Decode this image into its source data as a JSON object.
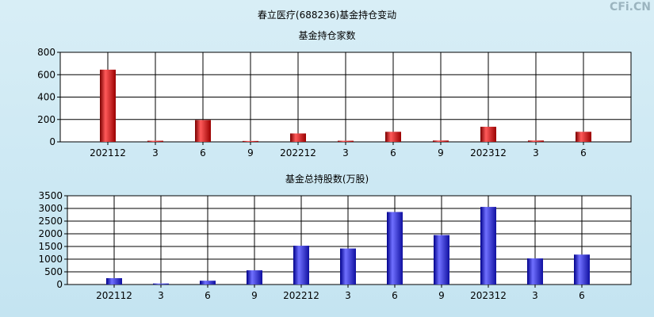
{
  "title": "春立医疗(688236)基金持仓变动",
  "watermark": "CFi.CN",
  "chart_data": [
    {
      "type": "bar",
      "title": "基金持仓家数",
      "categories": [
        "202112",
        "3",
        "6",
        "9",
        "202212",
        "3",
        "6",
        "9",
        "202312",
        "3",
        "6"
      ],
      "values": [
        645,
        10,
        195,
        8,
        75,
        10,
        90,
        12,
        135,
        12,
        90
      ],
      "ylim": [
        0,
        800
      ],
      "yticks": [
        0,
        200,
        400,
        600,
        800
      ],
      "grid": true,
      "color": "#e02020"
    },
    {
      "type": "bar",
      "title": "基金总持股数(万股)",
      "categories": [
        "202112",
        "3",
        "6",
        "9",
        "202212",
        "3",
        "6",
        "9",
        "202312",
        "3",
        "6"
      ],
      "values": [
        250,
        40,
        150,
        560,
        1530,
        1420,
        2860,
        1950,
        3060,
        1030,
        1180
      ],
      "ylim": [
        0,
        3500
      ],
      "yticks": [
        0,
        500,
        1000,
        1500,
        2000,
        2500,
        3000,
        3500
      ],
      "grid": true,
      "color": "#3030e0"
    }
  ]
}
